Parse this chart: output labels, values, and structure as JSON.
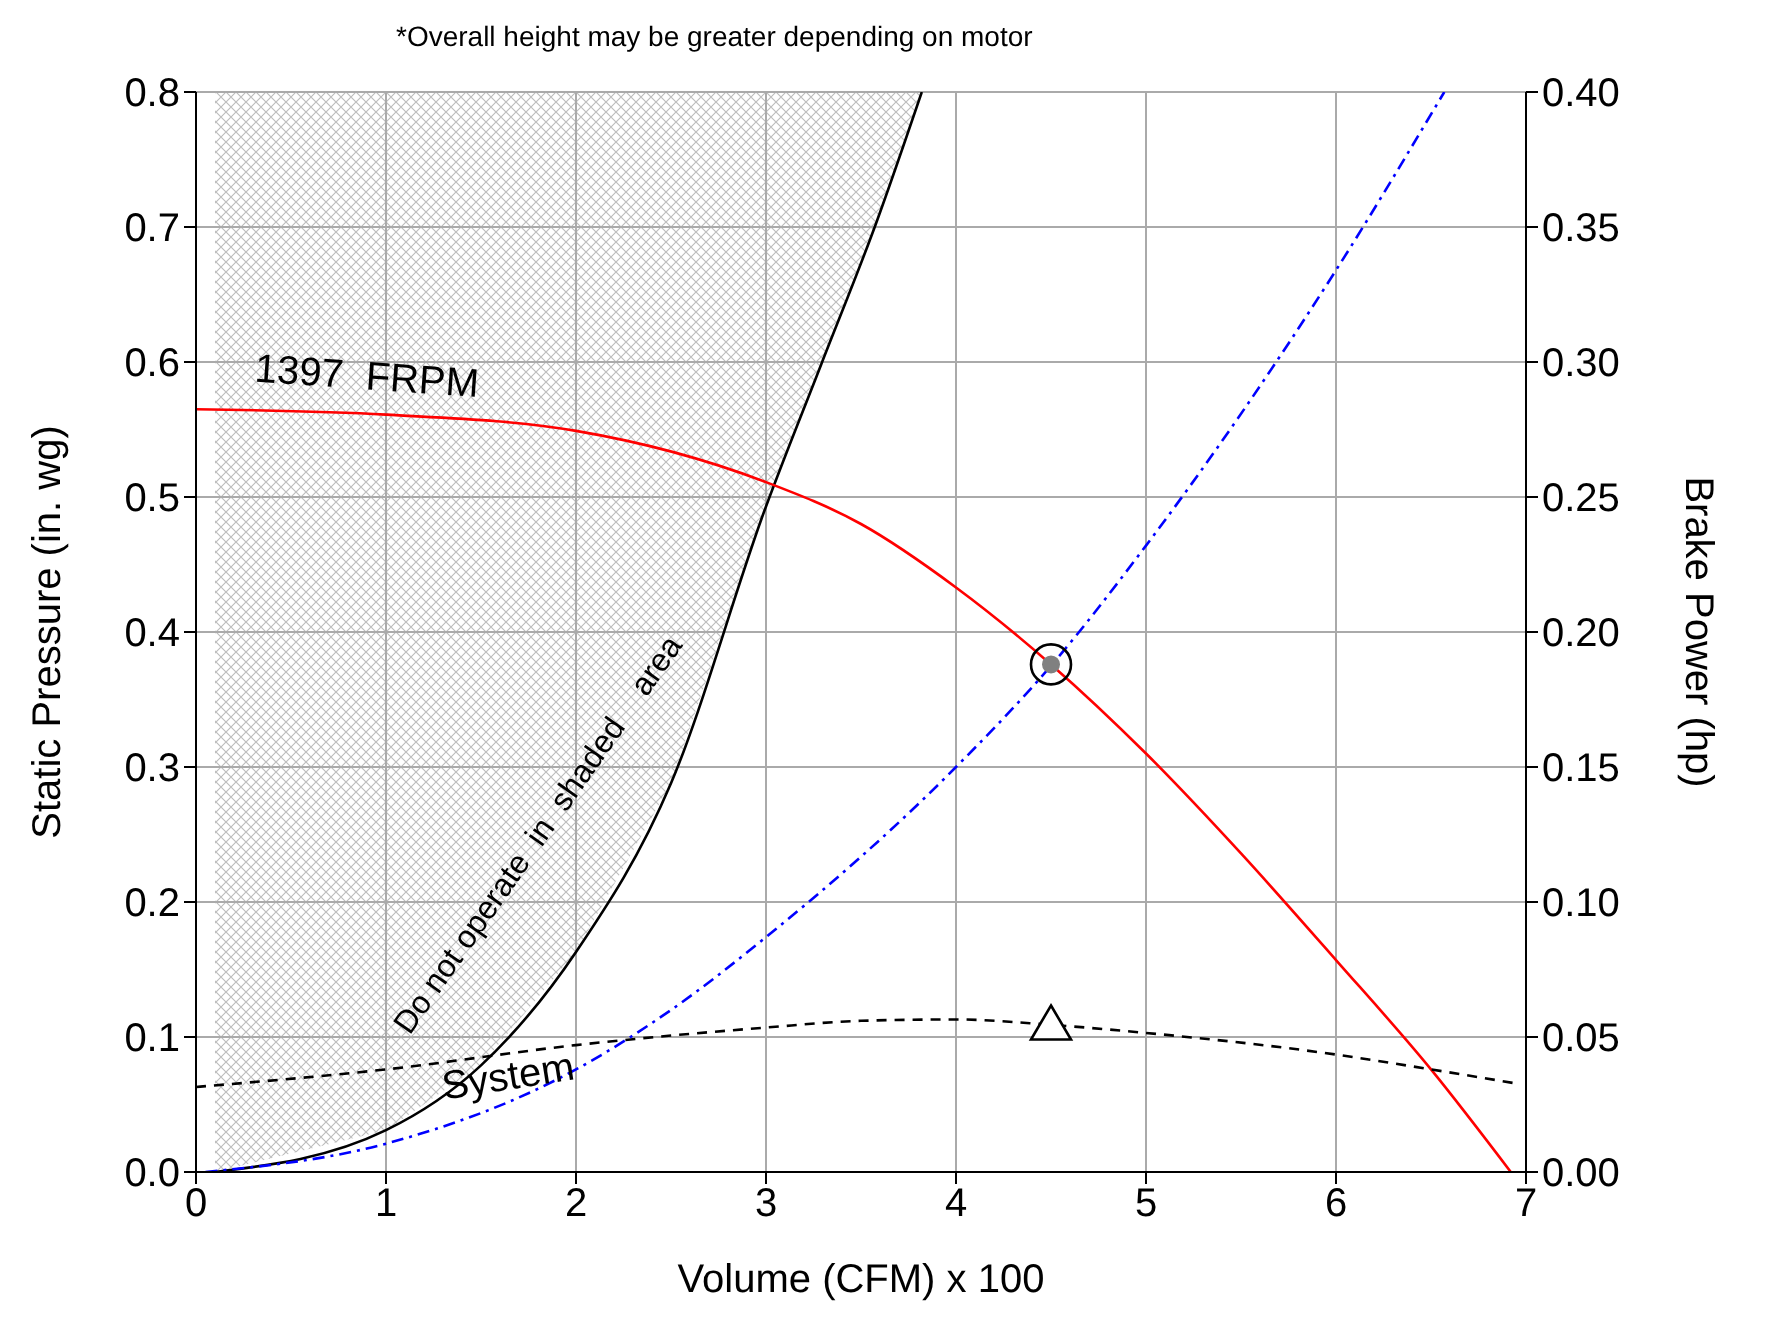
{
  "chart_data": {
    "type": "line",
    "xlabel": "Volume (CFM) x 100",
    "ylabel": "Static Pressure (in. wg)",
    "y2label": "Brake Power (hp)",
    "annotations": [
      "*Overall height may be greater depending on motor",
      "Do not operate  in  shaded    area"
    ],
    "series": [
      {
        "color": "#000000",
        "line_style": "solid",
        "x": [
          0.1,
          1,
          1.5,
          2,
          2.5,
          3,
          3.29,
          3.58,
          3.82
        ],
        "values": [
          0,
          0.031,
          0.079,
          0.163,
          0.288,
          0.493,
          0.598,
          0.703,
          0.8
        ]
      },
      {
        "name": "1397  FRPM",
        "color": "#ff0000",
        "line_style": "solid",
        "x": [
          0,
          1,
          2,
          3,
          3.5,
          4,
          4.5,
          5,
          5.5,
          6,
          6.5,
          6.92
        ],
        "values": [
          0.565,
          0.561,
          0.549,
          0.511,
          0.48,
          0.433,
          0.376,
          0.31,
          0.236,
          0.157,
          0.076,
          0
        ]
      },
      {
        "name": "System",
        "color": "#000000",
        "line_style": "dashed",
        "x": [
          0,
          1,
          2,
          3,
          3.5,
          4,
          4.5,
          5,
          6,
          6.5,
          6.93
        ],
        "values": [
          0.063,
          0.076,
          0.094,
          0.107,
          0.112,
          0.113,
          0.109,
          0.103,
          0.087,
          0.076,
          0.066
        ]
      },
      {
        "axis": "y2",
        "color": "#0000ff",
        "line_style": "dotted",
        "x": [
          0.05,
          1,
          2,
          2.5,
          3,
          4,
          4.5,
          5,
          6,
          6.57
        ],
        "values": [
          0,
          0.0105,
          0.038,
          0.06,
          0.087,
          0.15,
          0.1875,
          0.232,
          0.334,
          0.4
        ]
      },
      {
        "type": "scatter",
        "marker": "circle",
        "color": "#808080",
        "x": [
          4.5
        ],
        "values": [
          0.376
        ]
      },
      {
        "type": "scatter",
        "marker": "triangle",
        "color": "#000000",
        "x": [
          4.5
        ],
        "values": [
          0.11
        ]
      }
    ],
    "xlim": [
      0,
      7
    ],
    "xticks": [
      0,
      1,
      2,
      3,
      4,
      5,
      6,
      7
    ],
    "ylim": [
      0,
      0.8
    ],
    "yticks": [
      {
        "value": 0,
        "label": "0.0"
      },
      {
        "value": 0.1,
        "label": "0.1"
      },
      {
        "value": 0.2,
        "label": "0.2"
      },
      {
        "value": 0.3,
        "label": "0.3"
      },
      {
        "value": 0.4,
        "label": "0.4"
      },
      {
        "value": 0.5,
        "label": "0.5"
      },
      {
        "value": 0.6,
        "label": "0.6"
      },
      {
        "value": 0.7,
        "label": "0.7"
      },
      {
        "value": 0.8,
        "label": "0.8"
      }
    ],
    "y2lim": [
      0,
      0.4
    ],
    "y2ticks": [
      {
        "value": 0,
        "label": "0.00"
      },
      {
        "value": 0.05,
        "label": "0.05"
      },
      {
        "value": 0.1,
        "label": "0.10"
      },
      {
        "value": 0.15,
        "label": "0.15"
      },
      {
        "value": 0.2,
        "label": "0.20"
      },
      {
        "value": 0.25,
        "label": "0.25"
      },
      {
        "value": 0.3,
        "label": "0.30"
      },
      {
        "value": 0.35,
        "label": "0.35"
      },
      {
        "value": 0.4,
        "label": "0.40"
      }
    ],
    "grid": true,
    "legend": false,
    "marker": "none"
  }
}
